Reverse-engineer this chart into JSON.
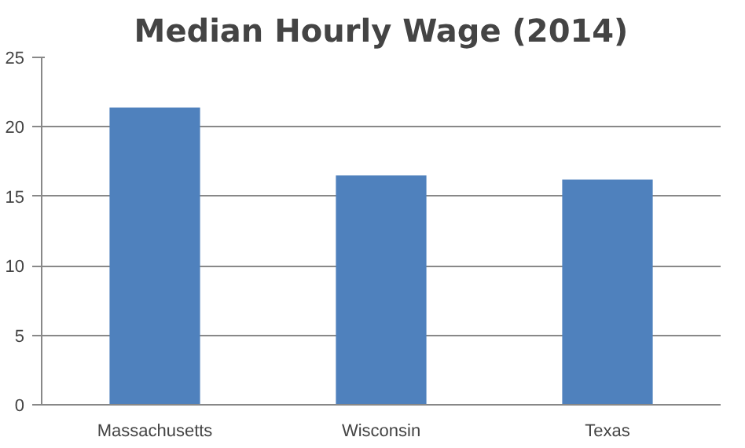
{
  "chart_data": {
    "type": "bar",
    "title": "Median Hourly Wage (2014)",
    "categories": [
      "Massachusetts",
      "Wisconsin",
      "Texas"
    ],
    "values": [
      21.4,
      16.5,
      16.2
    ],
    "color": "#4f81bd",
    "ylim": [
      0,
      25
    ],
    "yticks": [
      0,
      5,
      10,
      15,
      20,
      25
    ],
    "grid": "y"
  }
}
